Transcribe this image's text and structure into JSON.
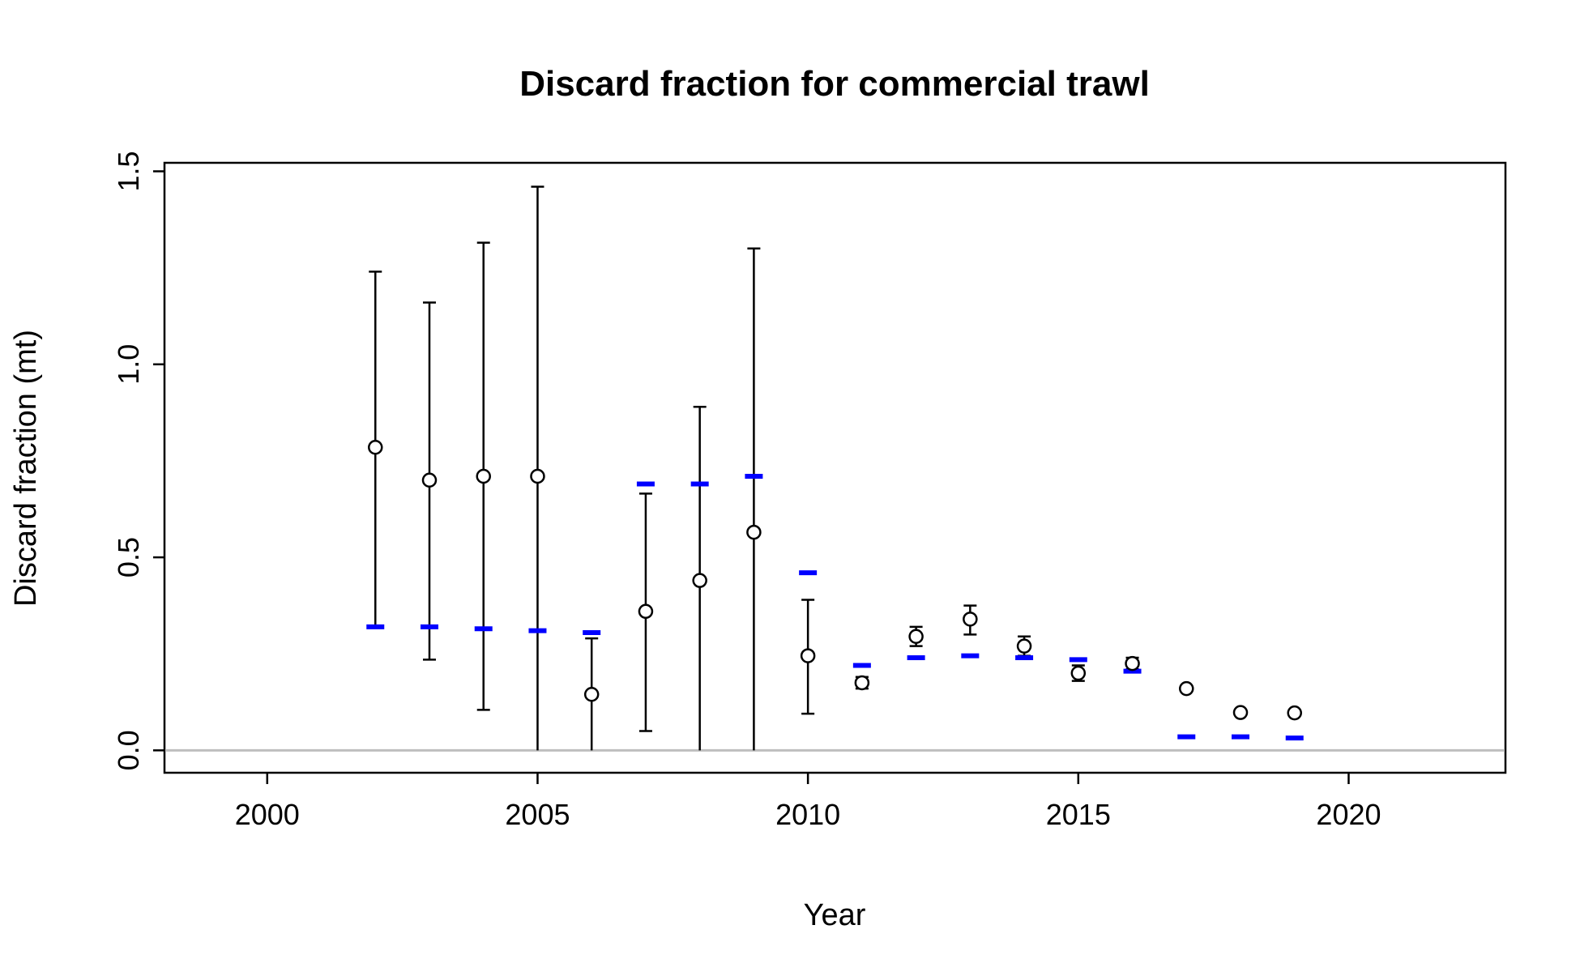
{
  "chart_data": {
    "type": "scatter",
    "title": "Discard fraction for commercial trawl",
    "xlabel": "Year",
    "ylabel": "Discard fraction (mt)",
    "xlim": [
      1998.1,
      2022.9
    ],
    "ylim": [
      -0.058,
      1.522
    ],
    "x_ticks": [
      2000,
      2005,
      2010,
      2015,
      2020
    ],
    "y_ticks": [
      0.0,
      0.5,
      1.0,
      1.5
    ],
    "x_tick_labels": [
      "2000",
      "2005",
      "2010",
      "2015",
      "2020"
    ],
    "y_tick_labels": [
      "0.0",
      "0.5",
      "1.0",
      "1.5"
    ],
    "grid": false,
    "reference_line_y": 0,
    "colors": {
      "observed": "#000000",
      "expected": "#0000ff",
      "reference": "#bebebe"
    },
    "observed": [
      {
        "year": 2002,
        "value": 0.785,
        "lower": 0.32,
        "upper": 1.24
      },
      {
        "year": 2003,
        "value": 0.7,
        "lower": 0.235,
        "upper": 1.16
      },
      {
        "year": 2004,
        "value": 0.71,
        "lower": 0.105,
        "upper": 1.315
      },
      {
        "year": 2005,
        "value": 0.71,
        "lower": 0.0,
        "upper": 1.46
      },
      {
        "year": 2006,
        "value": 0.145,
        "lower": 0.0,
        "upper": 0.29
      },
      {
        "year": 2007,
        "value": 0.36,
        "lower": 0.05,
        "upper": 0.665
      },
      {
        "year": 2008,
        "value": 0.44,
        "lower": 0.0,
        "upper": 0.89
      },
      {
        "year": 2009,
        "value": 0.565,
        "lower": 0.0,
        "upper": 1.3
      },
      {
        "year": 2010,
        "value": 0.245,
        "lower": 0.095,
        "upper": 0.39
      },
      {
        "year": 2011,
        "value": 0.175,
        "lower": 0.16,
        "upper": 0.19
      },
      {
        "year": 2012,
        "value": 0.295,
        "lower": 0.27,
        "upper": 0.32
      },
      {
        "year": 2013,
        "value": 0.34,
        "lower": 0.3,
        "upper": 0.375
      },
      {
        "year": 2014,
        "value": 0.27,
        "lower": 0.245,
        "upper": 0.295
      },
      {
        "year": 2015,
        "value": 0.2,
        "lower": 0.18,
        "upper": 0.22
      },
      {
        "year": 2016,
        "value": 0.225,
        "lower": 0.21,
        "upper": 0.24
      },
      {
        "year": 2017,
        "value": 0.16,
        "lower": 0.155,
        "upper": 0.165
      },
      {
        "year": 2018,
        "value": 0.098,
        "lower": 0.095,
        "upper": 0.1
      },
      {
        "year": 2019,
        "value": 0.097,
        "lower": 0.094,
        "upper": 0.1
      }
    ],
    "expected": [
      {
        "year": 2002,
        "value": 0.32
      },
      {
        "year": 2003,
        "value": 0.32
      },
      {
        "year": 2004,
        "value": 0.315
      },
      {
        "year": 2005,
        "value": 0.31
      },
      {
        "year": 2006,
        "value": 0.305
      },
      {
        "year": 2007,
        "value": 0.69
      },
      {
        "year": 2008,
        "value": 0.69
      },
      {
        "year": 2009,
        "value": 0.71
      },
      {
        "year": 2010,
        "value": 0.46
      },
      {
        "year": 2011,
        "value": 0.22
      },
      {
        "year": 2012,
        "value": 0.24
      },
      {
        "year": 2013,
        "value": 0.245
      },
      {
        "year": 2014,
        "value": 0.24
      },
      {
        "year": 2015,
        "value": 0.235
      },
      {
        "year": 2016,
        "value": 0.205
      },
      {
        "year": 2017,
        "value": 0.035
      },
      {
        "year": 2018,
        "value": 0.035
      },
      {
        "year": 2019,
        "value": 0.032
      }
    ]
  }
}
